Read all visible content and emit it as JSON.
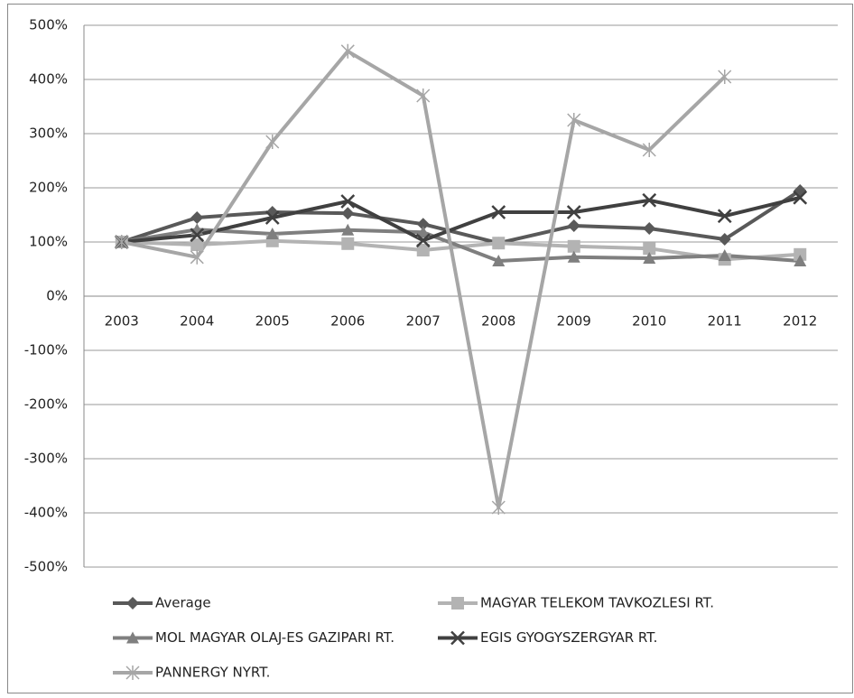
{
  "chart_data": {
    "type": "line",
    "categories": [
      "2003",
      "2004",
      "2005",
      "2006",
      "2007",
      "2008",
      "2009",
      "2010",
      "2011",
      "2012"
    ],
    "series": [
      {
        "name": "Average",
        "color": "#595959",
        "marker": "diamond",
        "values": [
          100,
          145,
          155,
          153,
          133,
          98,
          130,
          125,
          105,
          195
        ]
      },
      {
        "name": "MAGYAR TELEKOM TAVKOZLESI RT.",
        "color": "#b3b3b3",
        "marker": "square",
        "values": [
          100,
          95,
          102,
          97,
          85,
          98,
          92,
          88,
          68,
          77
        ]
      },
      {
        "name": "MOL MAGYAR OLAJ-ES GAZIPARI RT.",
        "color": "#7f7f7f",
        "marker": "triangle",
        "values": [
          100,
          123,
          115,
          122,
          118,
          65,
          72,
          70,
          75,
          65
        ]
      },
      {
        "name": "EGIS GYOGYSZERGYAR RT.",
        "color": "#404040",
        "marker": "x",
        "values": [
          100,
          113,
          145,
          175,
          103,
          155,
          155,
          177,
          148,
          182
        ]
      },
      {
        "name": "PANNERGY NYRT.",
        "color": "#a6a6a6",
        "marker": "star",
        "values": [
          100,
          72,
          285,
          452,
          370,
          -390,
          325,
          270,
          405,
          null
        ]
      }
    ],
    "ylim": [
      -500,
      500
    ],
    "yticks": [
      {
        "value": -500,
        "label": "-500%"
      },
      {
        "value": -400,
        "label": "-400%"
      },
      {
        "value": -300,
        "label": "-300%"
      },
      {
        "value": -200,
        "label": "-200%"
      },
      {
        "value": -100,
        "label": "-100%"
      },
      {
        "value": 0,
        "label": "0%"
      },
      {
        "value": 100,
        "label": "100%"
      },
      {
        "value": 200,
        "label": "200%"
      },
      {
        "value": 300,
        "label": "300%"
      },
      {
        "value": 400,
        "label": "400%"
      },
      {
        "value": 500,
        "label": "500%"
      }
    ],
    "grid": true,
    "legend": "bottom"
  }
}
